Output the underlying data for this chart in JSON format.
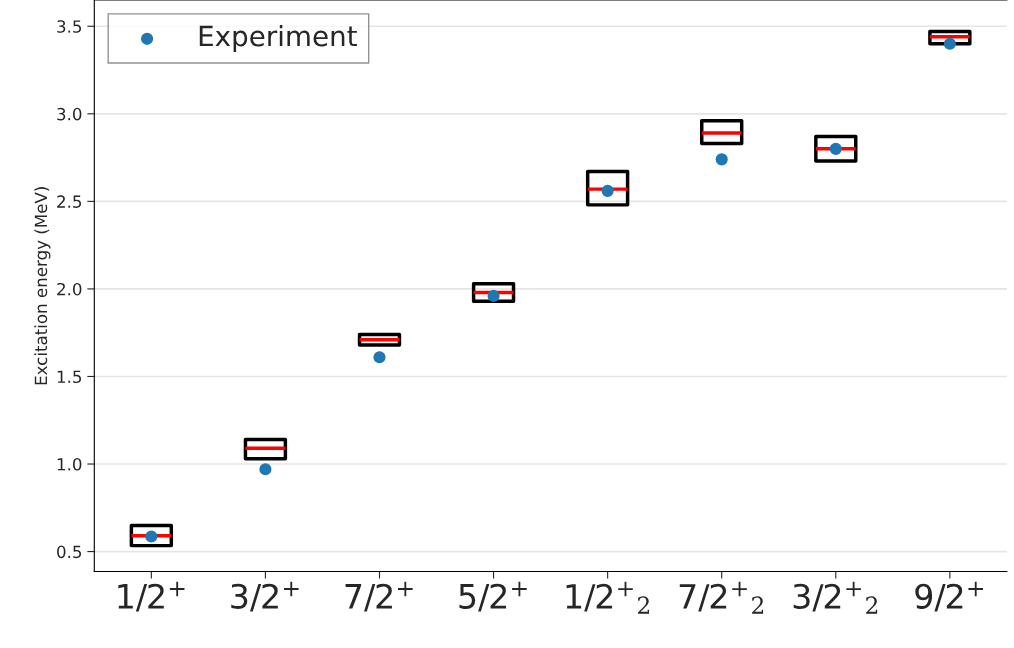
{
  "chart_data": {
    "type": "box",
    "ylabel": "Excitation energy (MeV)",
    "categories": [
      "1/2$^{+}$",
      "3/2$^{+}$",
      "7/2$^{+}$",
      "5/2$^{+}$",
      "1/2$^{+}$$_{2}$",
      "7/2$^{+}$$_{2}$",
      "3/2$^{+}$$_{2}$",
      "9/2$^{+}$"
    ],
    "boxes": [
      {
        "low": 0.534,
        "q1": 0.534,
        "median": 0.59,
        "q3": 0.649,
        "high": 0.649
      },
      {
        "low": 1.03,
        "q1": 1.03,
        "median": 1.09,
        "q3": 1.14,
        "high": 1.14
      },
      {
        "low": 1.68,
        "q1": 1.68,
        "median": 1.71,
        "q3": 1.74,
        "high": 1.74
      },
      {
        "low": 1.93,
        "q1": 1.93,
        "median": 1.98,
        "q3": 2.03,
        "high": 2.03
      },
      {
        "low": 2.48,
        "q1": 2.48,
        "median": 2.57,
        "q3": 2.67,
        "high": 2.67
      },
      {
        "low": 2.83,
        "q1": 2.83,
        "median": 2.89,
        "q3": 2.96,
        "high": 2.96
      },
      {
        "low": 2.73,
        "q1": 2.73,
        "median": 2.8,
        "q3": 2.87,
        "high": 2.87
      },
      {
        "low": 3.4,
        "q1": 3.4,
        "median": 3.44,
        "q3": 3.47,
        "high": 3.47
      }
    ],
    "series": [
      {
        "type": "scatter",
        "name": "Experiment",
        "color": "#1f77b4",
        "values": [
          0.586,
          0.97,
          1.61,
          1.96,
          2.56,
          2.74,
          2.8,
          3.4
        ]
      }
    ],
    "ylim": [
      0.386,
      3.65
    ],
    "yticks": [
      0.5,
      {
        "value": 1,
        "label": "1.0"
      },
      1.5,
      {
        "value": 2,
        "label": "2.0"
      },
      2.5,
      {
        "value": 3,
        "label": "3.0"
      },
      3.5
    ],
    "grid": "y",
    "legend": "top left",
    "marker": "circle"
  }
}
